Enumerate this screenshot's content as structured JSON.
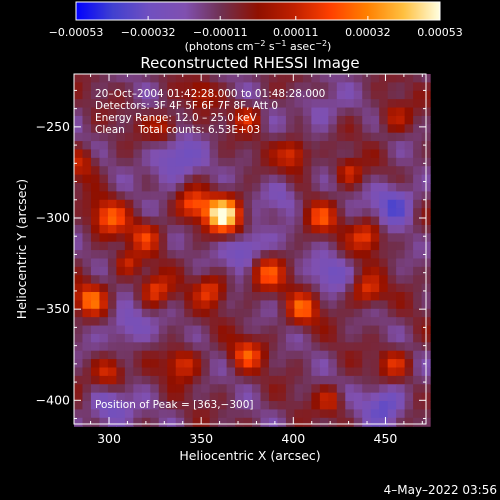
{
  "chart_data": {
    "type": "heatmap",
    "title": "Reconstructed RHESSI Image",
    "xlabel": "Heliocentric X (arcsec)",
    "ylabel": "Heliocentric Y (arcsec)",
    "xlim": [
      281,
      472
    ],
    "ylim": [
      -413,
      -221
    ],
    "x_ticks": [
      {
        "value": 300,
        "label": "300"
      },
      {
        "value": 350,
        "label": "350"
      },
      {
        "value": 400,
        "label": "400"
      },
      {
        "value": 450,
        "label": "450"
      }
    ],
    "y_ticks": [
      {
        "value": -250,
        "label": "−250"
      },
      {
        "value": -300,
        "label": "−300"
      },
      {
        "value": -350,
        "label": "−350"
      },
      {
        "value": -400,
        "label": "−400"
      }
    ],
    "colorbar": {
      "min": -0.00053,
      "max": 0.00053,
      "ticks": [
        {
          "value": -0.00053,
          "label": "−0.00053"
        },
        {
          "value": -0.00032,
          "label": "−0.00032"
        },
        {
          "value": -0.00011,
          "label": "−0.00011"
        },
        {
          "value": 0.00011,
          "label": "0.00011"
        },
        {
          "value": 0.00032,
          "label": "0.00032"
        },
        {
          "value": 0.00053,
          "label": "0.00053"
        }
      ],
      "units_main": "(photons cm",
      "units_exp1": "−2",
      "units_mid": " s",
      "units_exp2": "−1",
      "units_mid2": " asec",
      "units_exp3": "−2",
      "units_end": ")",
      "colors": [
        "#0000ff",
        "#4040d0",
        "#7050c0",
        "#8050b0",
        "#703050",
        "#901000",
        "#c02000",
        "#ff4000",
        "#ff8000",
        "#ffc040",
        "#ffffe0"
      ]
    },
    "annotations": {
      "time_range": "20–Oct–2004 01:42:28.000 to 01:48:28.000",
      "detectors": "Detectors: 3F 4F 5F 6F 7F 8F, Att 0",
      "energy": "Energy Range: 12.0 – 25.0 keV",
      "clean": "Clean    Total counts: 6.53E+03",
      "peak": "Position of Peak = [363,−300]"
    },
    "peak": {
      "x": 363,
      "y": -300
    },
    "sources": [
      {
        "x": 362,
        "y": -298,
        "amp": 1.25,
        "r": 7
      },
      {
        "x": 345,
        "y": -293,
        "amp": 0.6,
        "r": 6
      },
      {
        "x": 300,
        "y": -300,
        "amp": 0.65,
        "r": 7
      },
      {
        "x": 320,
        "y": -310,
        "amp": 0.5,
        "r": 6
      },
      {
        "x": 400,
        "y": -265,
        "amp": 0.6,
        "r": 6
      },
      {
        "x": 415,
        "y": -300,
        "amp": 0.55,
        "r": 6
      },
      {
        "x": 440,
        "y": -310,
        "amp": 0.6,
        "r": 6
      },
      {
        "x": 330,
        "y": -250,
        "amp": 0.5,
        "r": 6
      },
      {
        "x": 375,
        "y": -245,
        "amp": 0.45,
        "r": 5
      },
      {
        "x": 385,
        "y": -330,
        "amp": 0.65,
        "r": 7
      },
      {
        "x": 355,
        "y": -340,
        "amp": 0.55,
        "r": 6
      },
      {
        "x": 325,
        "y": -340,
        "amp": 0.6,
        "r": 6
      },
      {
        "x": 290,
        "y": -345,
        "amp": 0.7,
        "r": 6
      },
      {
        "x": 300,
        "y": -385,
        "amp": 0.6,
        "r": 6
      },
      {
        "x": 340,
        "y": -380,
        "amp": 0.55,
        "r": 6
      },
      {
        "x": 375,
        "y": -375,
        "amp": 0.6,
        "r": 6
      },
      {
        "x": 405,
        "y": -350,
        "amp": 0.65,
        "r": 6
      },
      {
        "x": 440,
        "y": -340,
        "amp": 0.55,
        "r": 6
      },
      {
        "x": 455,
        "y": -380,
        "amp": 0.5,
        "r": 6
      },
      {
        "x": 420,
        "y": -400,
        "amp": 0.45,
        "r": 5
      },
      {
        "x": 285,
        "y": -270,
        "amp": 0.4,
        "r": 6
      },
      {
        "x": 455,
        "y": -245,
        "amp": 0.4,
        "r": 6
      },
      {
        "x": 350,
        "y": -232,
        "amp": 0.35,
        "r": 5
      },
      {
        "x": 430,
        "y": -275,
        "amp": 0.5,
        "r": 5
      },
      {
        "x": 310,
        "y": -325,
        "amp": 0.45,
        "r": 5
      }
    ],
    "sinks": [
      {
        "x": 375,
        "y": -318,
        "amp": -0.55,
        "r": 8
      },
      {
        "x": 335,
        "y": -268,
        "amp": -0.5,
        "r": 9
      },
      {
        "x": 455,
        "y": -292,
        "amp": -0.55,
        "r": 8
      },
      {
        "x": 300,
        "y": -405,
        "amp": -0.45,
        "r": 8
      },
      {
        "x": 450,
        "y": -402,
        "amp": -0.5,
        "r": 8
      },
      {
        "x": 310,
        "y": -360,
        "amp": -0.4,
        "r": 8
      },
      {
        "x": 420,
        "y": -330,
        "amp": -0.35,
        "r": 7
      },
      {
        "x": 395,
        "y": -288,
        "amp": -0.3,
        "r": 7
      },
      {
        "x": 415,
        "y": -240,
        "amp": -0.3,
        "r": 8
      }
    ]
  },
  "footer": {
    "timestamp": "4–May–2022 03:56"
  }
}
